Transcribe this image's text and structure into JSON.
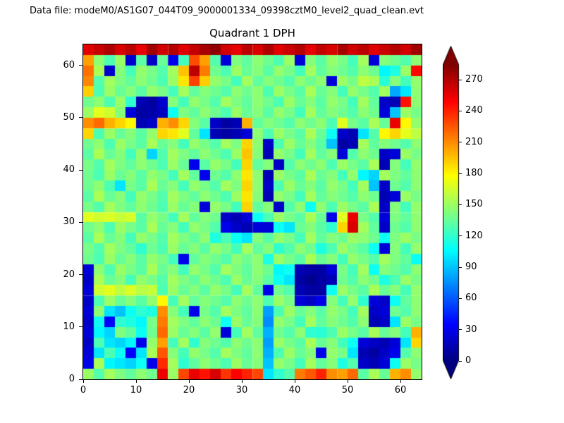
{
  "header": {
    "data_file_label": "Data file: modeM0/AS1G07_044T09_9000001334_09398cztM0_level2_quad_clean.evt"
  },
  "chart_data": {
    "type": "heatmap",
    "title": "Quadrant 1 DPH",
    "xlabel": "",
    "ylabel": "",
    "xlim": [
      0,
      64
    ],
    "ylim": [
      0,
      64
    ],
    "xticks": [
      0,
      10,
      20,
      30,
      40,
      50,
      60
    ],
    "yticks": [
      0,
      10,
      20,
      30,
      40,
      50,
      60
    ],
    "colormap": "jet",
    "vmin": 0,
    "vmax": 285,
    "colorbar_ticks": [
      0,
      30,
      60,
      90,
      120,
      150,
      180,
      210,
      240,
      270
    ],
    "colorbar_extend": "both",
    "grid_note": "64x64 detector plane histogram; counts estimated from colors on a downsampled 32x32 grid, rows listed top-to-bottom (y=63 first)",
    "values": [
      [
        258,
        265,
        272,
        260,
        268,
        255,
        275,
        262,
        270,
        258,
        266,
        274,
        280,
        262,
        256,
        268,
        260,
        272,
        258,
        264,
        270,
        256,
        266,
        260,
        274,
        262,
        268,
        258,
        264,
        270,
        262,
        276
      ],
      [
        205,
        146,
        128,
        150,
        22,
        132,
        20,
        136,
        30,
        126,
        228,
        205,
        130,
        25,
        142,
        134,
        146,
        138,
        128,
        150,
        25,
        144,
        132,
        148,
        140,
        126,
        152,
        25,
        144,
        138,
        130,
        146
      ],
      [
        218,
        154,
        22,
        144,
        126,
        148,
        140,
        130,
        152,
        195,
        268,
        215,
        138,
        128,
        150,
        136,
        144,
        132,
        148,
        140,
        126,
        152,
        134,
        144,
        138,
        130,
        146,
        138,
        105,
        115,
        150,
        248
      ],
      [
        212,
        130,
        152,
        142,
        134,
        146,
        138,
        128,
        150,
        185,
        232,
        192,
        148,
        140,
        126,
        152,
        134,
        144,
        138,
        130,
        146,
        138,
        146,
        25,
        150,
        140,
        160,
        154,
        118,
        144,
        126,
        148
      ],
      [
        192,
        128,
        150,
        136,
        144,
        132,
        148,
        140,
        126,
        152,
        134,
        144,
        138,
        130,
        146,
        138,
        146,
        128,
        150,
        140,
        132,
        154,
        136,
        144,
        126,
        148,
        140,
        130,
        152,
        82,
        100,
        146
      ],
      [
        138,
        146,
        128,
        150,
        120,
        15,
        10,
        22,
        144,
        126,
        148,
        140,
        130,
        152,
        142,
        134,
        146,
        138,
        128,
        150,
        136,
        144,
        132,
        148,
        140,
        126,
        152,
        134,
        20,
        15,
        245,
        146
      ],
      [
        150,
        170,
        165,
        144,
        25,
        10,
        12,
        18,
        110,
        142,
        134,
        146,
        138,
        128,
        150,
        136,
        144,
        132,
        148,
        140,
        126,
        152,
        134,
        144,
        138,
        130,
        146,
        138,
        25,
        90,
        150,
        140
      ],
      [
        210,
        220,
        200,
        190,
        180,
        15,
        20,
        200,
        210,
        190,
        144,
        132,
        20,
        10,
        15,
        200,
        134,
        144,
        138,
        130,
        146,
        138,
        146,
        128,
        170,
        140,
        132,
        154,
        136,
        255,
        180,
        148
      ],
      [
        190,
        128,
        150,
        136,
        144,
        132,
        148,
        190,
        185,
        170,
        134,
        100,
        15,
        10,
        15,
        25,
        146,
        128,
        150,
        140,
        132,
        154,
        136,
        110,
        20,
        15,
        100,
        130,
        180,
        190,
        170,
        160
      ],
      [
        138,
        146,
        128,
        150,
        140,
        132,
        154,
        136,
        144,
        126,
        148,
        140,
        130,
        152,
        142,
        190,
        146,
        20,
        128,
        150,
        136,
        144,
        132,
        90,
        10,
        15,
        152,
        134,
        144,
        138,
        130,
        146
      ],
      [
        132,
        154,
        136,
        144,
        126,
        148,
        95,
        130,
        152,
        142,
        134,
        146,
        138,
        128,
        150,
        195,
        144,
        15,
        148,
        140,
        126,
        152,
        134,
        144,
        25,
        130,
        146,
        138,
        20,
        25,
        150,
        140
      ],
      [
        140,
        130,
        152,
        142,
        134,
        146,
        138,
        128,
        150,
        136,
        30,
        132,
        148,
        140,
        126,
        190,
        134,
        144,
        20,
        130,
        146,
        138,
        146,
        128,
        150,
        140,
        132,
        154,
        15,
        144,
        126,
        148
      ],
      [
        138,
        128,
        150,
        136,
        144,
        132,
        148,
        140,
        126,
        152,
        134,
        30,
        138,
        130,
        146,
        185,
        146,
        15,
        150,
        140,
        132,
        154,
        136,
        144,
        126,
        148,
        105,
        95,
        152,
        142,
        134,
        146
      ],
      [
        138,
        146,
        128,
        100,
        140,
        132,
        154,
        136,
        144,
        126,
        148,
        140,
        130,
        152,
        142,
        190,
        146,
        20,
        128,
        150,
        136,
        144,
        132,
        148,
        140,
        126,
        152,
        90,
        20,
        138,
        130,
        146
      ],
      [
        132,
        154,
        136,
        144,
        126,
        148,
        140,
        130,
        152,
        142,
        134,
        146,
        138,
        128,
        150,
        185,
        144,
        15,
        148,
        140,
        126,
        152,
        134,
        144,
        138,
        130,
        146,
        138,
        15,
        25,
        150,
        140
      ],
      [
        140,
        130,
        152,
        142,
        134,
        146,
        138,
        128,
        150,
        136,
        144,
        25,
        148,
        140,
        126,
        190,
        134,
        144,
        20,
        130,
        146,
        110,
        146,
        128,
        150,
        140,
        132,
        154,
        20,
        144,
        126,
        148
      ],
      [
        170,
        165,
        168,
        162,
        166,
        132,
        148,
        140,
        126,
        152,
        134,
        144,
        138,
        20,
        15,
        25,
        110,
        128,
        150,
        140,
        132,
        154,
        136,
        30,
        170,
        255,
        140,
        130,
        25,
        142,
        134,
        146
      ],
      [
        138,
        146,
        128,
        150,
        140,
        132,
        154,
        136,
        144,
        126,
        148,
        140,
        130,
        30,
        20,
        15,
        25,
        25,
        110,
        100,
        136,
        144,
        132,
        120,
        190,
        260,
        152,
        134,
        20,
        138,
        130,
        146
      ],
      [
        132,
        154,
        136,
        144,
        126,
        148,
        140,
        130,
        152,
        142,
        134,
        146,
        115,
        128,
        110,
        100,
        144,
        132,
        148,
        140,
        126,
        152,
        134,
        144,
        138,
        150,
        146,
        138,
        110,
        142,
        150,
        140
      ],
      [
        140,
        130,
        152,
        142,
        134,
        120,
        138,
        128,
        150,
        136,
        144,
        132,
        148,
        140,
        126,
        152,
        134,
        144,
        120,
        130,
        146,
        138,
        115,
        128,
        150,
        140,
        132,
        110,
        25,
        144,
        126,
        148
      ],
      [
        138,
        128,
        150,
        136,
        144,
        132,
        148,
        140,
        126,
        30,
        134,
        144,
        138,
        130,
        146,
        138,
        146,
        115,
        150,
        140,
        132,
        154,
        136,
        144,
        126,
        148,
        140,
        130,
        152,
        142,
        134,
        110
      ],
      [
        25,
        146,
        128,
        150,
        140,
        132,
        154,
        136,
        144,
        126,
        148,
        140,
        130,
        152,
        142,
        134,
        146,
        138,
        105,
        110,
        15,
        10,
        10,
        25,
        140,
        126,
        152,
        110,
        144,
        138,
        130,
        146
      ],
      [
        20,
        154,
        136,
        144,
        126,
        148,
        140,
        130,
        152,
        142,
        134,
        146,
        138,
        128,
        150,
        136,
        144,
        132,
        110,
        100,
        10,
        5,
        10,
        15,
        138,
        130,
        146,
        138,
        115,
        128,
        150,
        140
      ],
      [
        25,
        165,
        170,
        160,
        168,
        158,
        162,
        128,
        150,
        136,
        144,
        132,
        148,
        140,
        126,
        152,
        134,
        30,
        138,
        130,
        15,
        10,
        10,
        110,
        150,
        140,
        132,
        154,
        136,
        144,
        126,
        148
      ],
      [
        20,
        128,
        150,
        136,
        144,
        132,
        148,
        180,
        126,
        152,
        134,
        144,
        138,
        130,
        146,
        138,
        146,
        128,
        150,
        140,
        25,
        20,
        30,
        144,
        126,
        148,
        120,
        25,
        20,
        110,
        134,
        146
      ],
      [
        25,
        146,
        100,
        90,
        110,
        120,
        115,
        210,
        144,
        126,
        30,
        140,
        130,
        152,
        142,
        134,
        146,
        80,
        128,
        150,
        136,
        144,
        132,
        148,
        140,
        126,
        152,
        20,
        25,
        138,
        130,
        146
      ],
      [
        20,
        110,
        35,
        120,
        115,
        105,
        140,
        215,
        152,
        142,
        134,
        146,
        138,
        110,
        150,
        136,
        144,
        75,
        148,
        140,
        126,
        152,
        134,
        144,
        138,
        130,
        146,
        15,
        20,
        100,
        150,
        140
      ],
      [
        25,
        105,
        95,
        142,
        134,
        110,
        138,
        220,
        150,
        136,
        144,
        132,
        148,
        25,
        126,
        152,
        134,
        85,
        138,
        130,
        146,
        120,
        118,
        128,
        150,
        140,
        132,
        154,
        136,
        144,
        126,
        200
      ],
      [
        20,
        128,
        100,
        95,
        105,
        30,
        148,
        205,
        126,
        152,
        120,
        144,
        138,
        130,
        146,
        138,
        146,
        80,
        150,
        140,
        132,
        154,
        136,
        144,
        126,
        110,
        25,
        20,
        15,
        25,
        100,
        190
      ],
      [
        25,
        100,
        128,
        110,
        35,
        100,
        154,
        225,
        144,
        126,
        148,
        140,
        130,
        152,
        142,
        134,
        146,
        85,
        128,
        150,
        136,
        144,
        30,
        148,
        140,
        100,
        15,
        10,
        20,
        30,
        130,
        146
      ],
      [
        30,
        154,
        105,
        100,
        95,
        110,
        30,
        238,
        152,
        120,
        134,
        146,
        138,
        128,
        150,
        136,
        144,
        90,
        148,
        140,
        126,
        152,
        134,
        144,
        115,
        130,
        20,
        15,
        25,
        110,
        150,
        140
      ],
      [
        150,
        130,
        152,
        142,
        134,
        146,
        138,
        255,
        150,
        230,
        255,
        245,
        260,
        235,
        250,
        240,
        230,
        100,
        120,
        130,
        215,
        225,
        240,
        210,
        205,
        220,
        132,
        154,
        136,
        200,
        210,
        148
      ]
    ]
  }
}
